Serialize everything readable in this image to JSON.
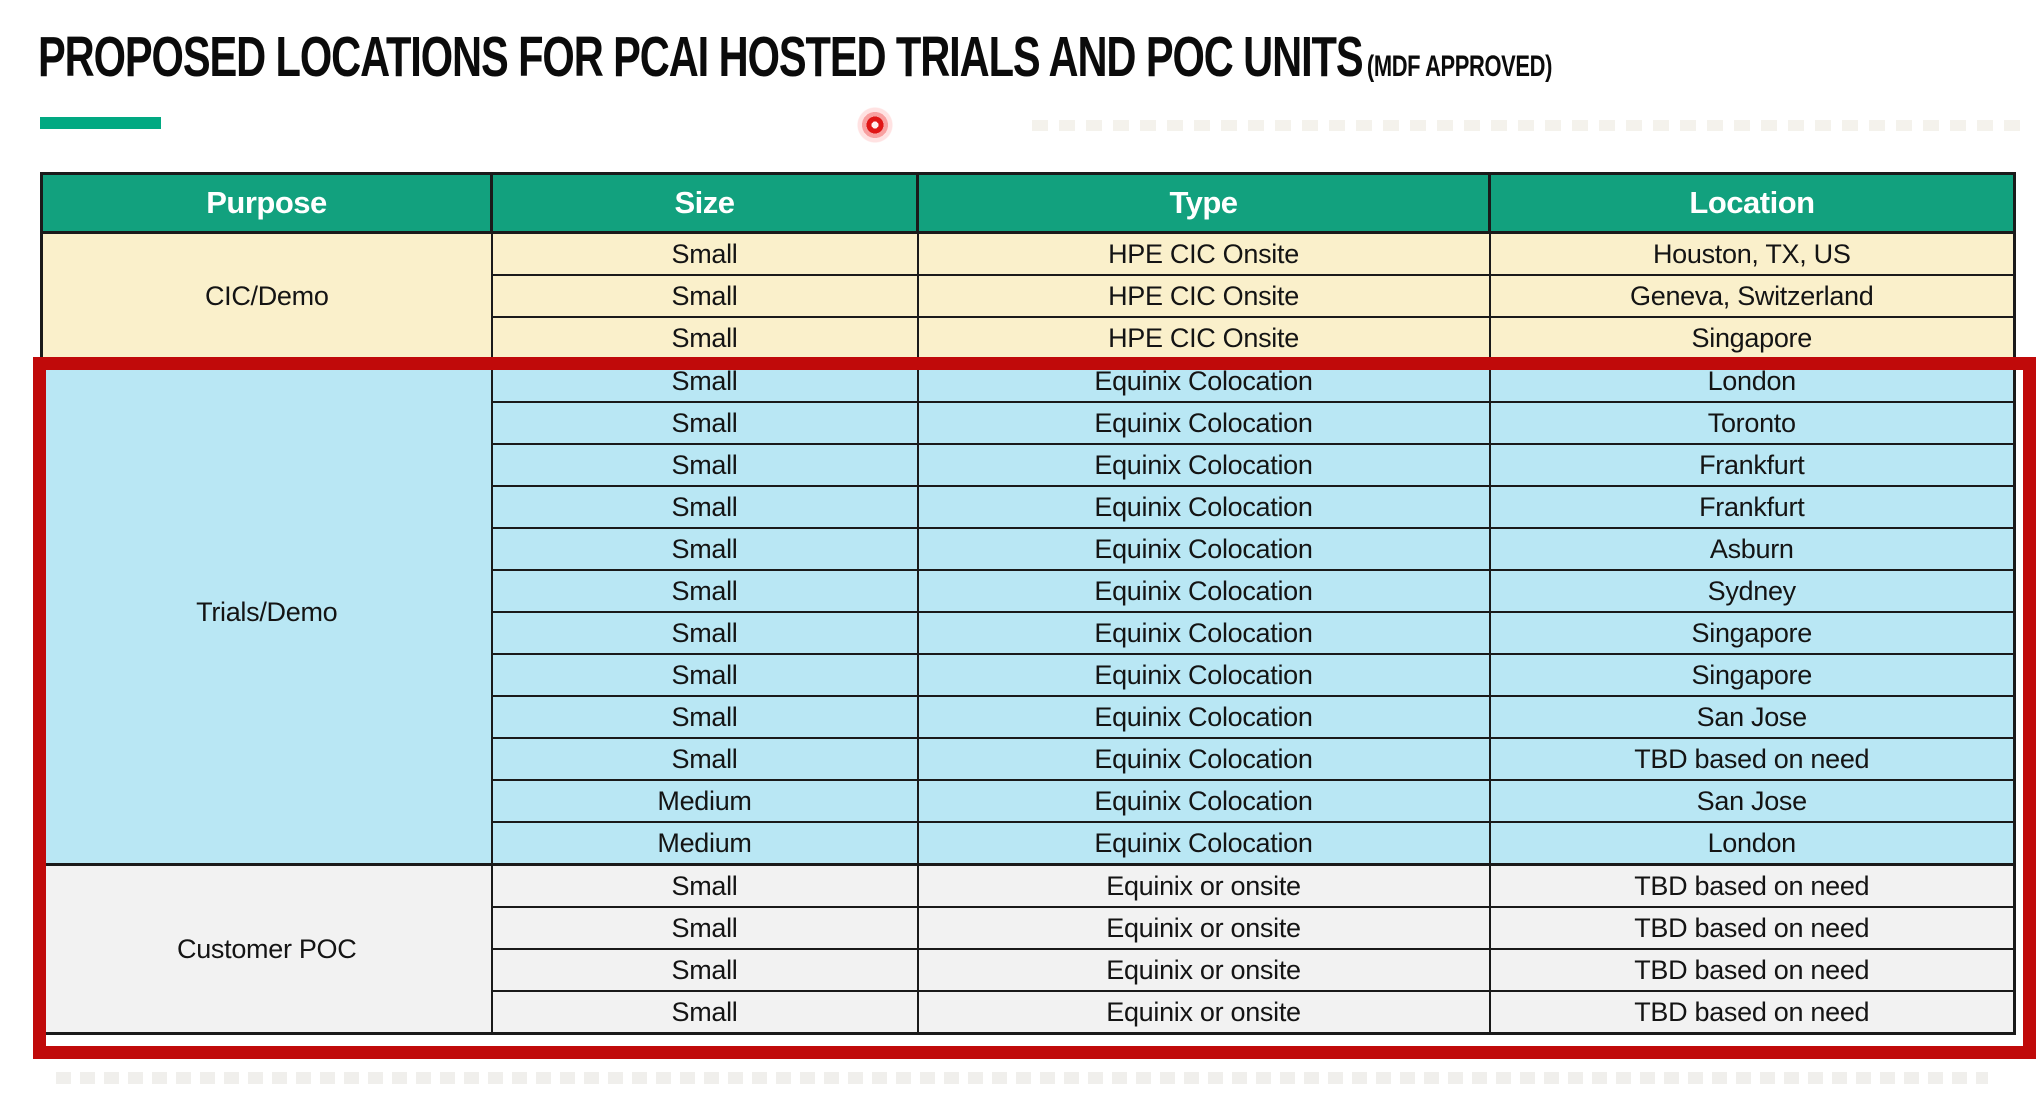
{
  "header": {
    "title": "PROPOSED LOCATIONS FOR PCAI HOSTED TRIALS AND POC UNITS",
    "title_suffix": "(MDF APPROVED)"
  },
  "colors": {
    "title_text": "#0B0B0B",
    "header_bg": "#12A17E",
    "header_text": "#FFFFFF",
    "cic_bg": "#FAF0CB",
    "trials_bg": "#B9E7F4",
    "poc_bg": "#F2F2F2",
    "grid": "#1A1A1A",
    "highlight_border": "#C00A0A",
    "accent_bar": "#01A982",
    "laser_dot": "#E01414"
  },
  "table": {
    "columns": [
      "Purpose",
      "Size",
      "Type",
      "Location"
    ],
    "sections": [
      {
        "purpose": "CIC/Demo",
        "bg_key": "cic_bg",
        "rows": [
          [
            "Small",
            "HPE CIC Onsite",
            "Houston, TX, US"
          ],
          [
            "Small",
            "HPE CIC Onsite",
            "Geneva, Switzerland"
          ],
          [
            "Small",
            "HPE CIC Onsite",
            "Singapore"
          ]
        ]
      },
      {
        "purpose": "Trials/Demo",
        "bg_key": "trials_bg",
        "rows": [
          [
            "Small",
            "Equinix Colocation",
            "London"
          ],
          [
            "Small",
            "Equinix Colocation",
            "Toronto"
          ],
          [
            "Small",
            "Equinix Colocation",
            "Frankfurt"
          ],
          [
            "Small",
            "Equinix Colocation",
            "Frankfurt"
          ],
          [
            "Small",
            "Equinix Colocation",
            "Asburn"
          ],
          [
            "Small",
            "Equinix Colocation",
            "Sydney"
          ],
          [
            "Small",
            "Equinix Colocation",
            "Singapore"
          ],
          [
            "Small",
            "Equinix Colocation",
            "Singapore"
          ],
          [
            "Small",
            "Equinix Colocation",
            "San Jose"
          ],
          [
            "Small",
            "Equinix Colocation",
            "TBD based on need"
          ],
          [
            "Medium",
            "Equinix Colocation",
            "San Jose"
          ],
          [
            "Medium",
            "Equinix Colocation",
            "London"
          ]
        ]
      },
      {
        "purpose": "Customer POC",
        "bg_key": "poc_bg",
        "rows": [
          [
            "Small",
            "Equinix or onsite",
            "TBD based on need"
          ],
          [
            "Small",
            "Equinix or onsite",
            "TBD based on need"
          ],
          [
            "Small",
            "Equinix or onsite",
            "TBD based on need"
          ],
          [
            "Small",
            "Equinix or onsite",
            "TBD based on need"
          ]
        ]
      }
    ],
    "highlighted_sections": [
      "Trials/Demo",
      "Customer POC"
    ]
  },
  "annotations": {
    "highlight_rectangle": "red border around Trials/Demo and Customer POC sections",
    "laser_pointer": "red laser pointer dot below title"
  }
}
